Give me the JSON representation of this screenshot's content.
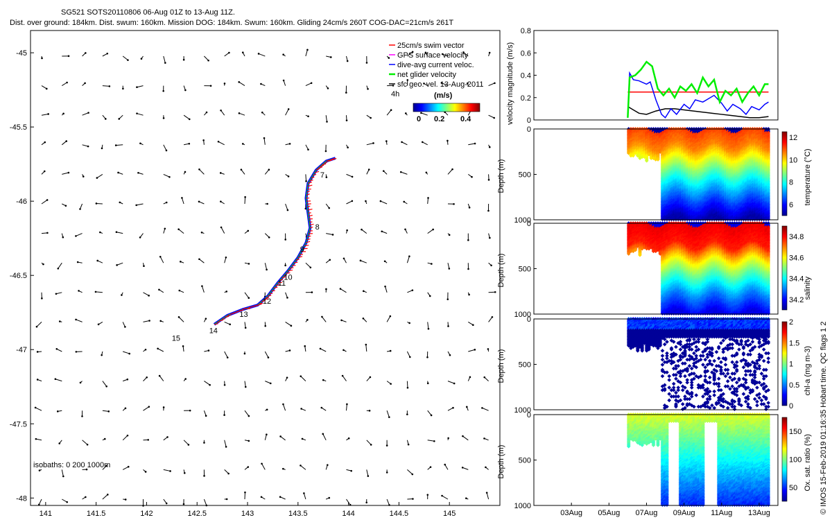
{
  "header": {
    "title_line1": "SG521 SOTS20110806 06-Aug 01Z to 13-Aug 11Z.",
    "title_line2": "Dist. over ground: 184km. Dist. swum: 160km. Mission DOG: 184km. Swum: 160km. Gliding 24cm/s 260T COG-DAC=21cm/s 261T"
  },
  "watermark": "© IMOS 15-Feb-2019 01:16:35 Hobart time. QC flags 1 2",
  "colors": {
    "swim": "#ff0000",
    "gps": "#ff00ff",
    "dac": "#0000ff",
    "net": "#00ee00",
    "geo": "#000000"
  },
  "chart_data": [
    {
      "type": "line",
      "panel": "map",
      "title": "",
      "xlim": [
        140.85,
        145.5
      ],
      "ylim": [
        -48.05,
        -44.85
      ],
      "x_ticks": [
        "141",
        "141.5",
        "142",
        "142.5",
        "143",
        "143.5",
        "144",
        "144.5",
        "145"
      ],
      "y_ticks": [
        "-45",
        "-45.5",
        "-46",
        "-46.5",
        "-47",
        "-47.5",
        "-48"
      ],
      "legend": [
        {
          "label": "25cm/s swim vector",
          "color": "#ff0000"
        },
        {
          "label": "GPS surface velocity",
          "color": "#ff00ff"
        },
        {
          "label": "dive-avg current veloc.",
          "color": "#0000ff"
        },
        {
          "label": "net glider velocity",
          "color": "#00ee00"
        },
        {
          "label": "sfc geo. vel. 13-Aug-2011",
          "color": "#000000"
        }
      ],
      "legend_time": "4h",
      "colorbar_title": "(m/s)",
      "colorbar_ticks": [
        "0",
        "0.2",
        "0.4"
      ],
      "isobaths_label": "isobaths: 0   200   1000m",
      "track": [
        [
          142.67,
          -46.83
        ],
        [
          142.8,
          -46.77
        ],
        [
          142.95,
          -46.73
        ],
        [
          143.1,
          -46.7
        ],
        [
          143.2,
          -46.64
        ],
        [
          143.3,
          -46.55
        ],
        [
          143.4,
          -46.47
        ],
        [
          143.5,
          -46.38
        ],
        [
          143.58,
          -46.28
        ],
        [
          143.62,
          -46.18
        ],
        [
          143.6,
          -46.08
        ],
        [
          143.58,
          -45.98
        ],
        [
          143.6,
          -45.88
        ],
        [
          143.68,
          -45.79
        ],
        [
          143.78,
          -45.73
        ],
        [
          143.87,
          -45.71
        ]
      ],
      "day_labels": [
        {
          "text": "7",
          "x": 143.72,
          "y": -45.84
        },
        {
          "text": "8",
          "x": 143.67,
          "y": -46.19
        },
        {
          "text": "9",
          "x": 143.52,
          "y": -46.34
        },
        {
          "text": "10",
          "x": 143.36,
          "y": -46.53
        },
        {
          "text": "11",
          "x": 143.3,
          "y": -46.57
        },
        {
          "text": "12",
          "x": 143.15,
          "y": -46.69
        },
        {
          "text": "13",
          "x": 142.92,
          "y": -46.78
        },
        {
          "text": "14",
          "x": 142.62,
          "y": -46.89
        },
        {
          "text": "15",
          "x": 142.25,
          "y": -46.94
        }
      ]
    },
    {
      "type": "line",
      "panel": "velocity",
      "ylabel": "velocity magnitude (m/s)",
      "ylim": [
        0,
        0.8
      ],
      "y_ticks": [
        "0",
        "0.2",
        "0.4",
        "0.6",
        "0.8"
      ],
      "series": [
        {
          "color": "#ff0000",
          "x": [
            6.0,
            13.5
          ],
          "y": [
            0.25,
            0.25
          ]
        },
        {
          "color": "#000000",
          "x": [
            6.0,
            6.3,
            6.6,
            7.0,
            7.5,
            8.0,
            8.5,
            9.0,
            9.5,
            10.0,
            10.5,
            11.0,
            11.5,
            12.0,
            12.5,
            13.0,
            13.5
          ],
          "y": [
            0.12,
            0.09,
            0.06,
            0.05,
            0.08,
            0.1,
            0.1,
            0.09,
            0.08,
            0.07,
            0.06,
            0.05,
            0.04,
            0.03,
            0.02,
            0.02,
            0.03
          ]
        },
        {
          "color": "#0000ff",
          "x": [
            6.0,
            6.1,
            6.3,
            6.6,
            7.0,
            7.2,
            7.5,
            7.8,
            8.0,
            8.3,
            8.6,
            9.0,
            9.3,
            9.6,
            10.0,
            10.3,
            10.6,
            11.0,
            11.3,
            11.6,
            12.0,
            12.3,
            12.6,
            13.0,
            13.3,
            13.5
          ],
          "y": [
            0.02,
            0.42,
            0.36,
            0.35,
            0.32,
            0.34,
            0.18,
            0.05,
            0.02,
            0.1,
            0.05,
            0.14,
            0.1,
            0.18,
            0.16,
            0.19,
            0.22,
            0.15,
            0.08,
            0.14,
            0.1,
            0.05,
            0.12,
            0.09,
            0.14,
            0.16
          ]
        },
        {
          "color": "#00ee00",
          "x": [
            6.0,
            6.1,
            6.4,
            6.7,
            7.0,
            7.3,
            7.6,
            7.9,
            8.2,
            8.5,
            8.8,
            9.1,
            9.4,
            9.7,
            10.0,
            10.3,
            10.6,
            10.9,
            11.2,
            11.5,
            11.8,
            12.1,
            12.4,
            12.7,
            13.0,
            13.3,
            13.5
          ],
          "y": [
            0.02,
            0.38,
            0.4,
            0.45,
            0.52,
            0.48,
            0.28,
            0.22,
            0.28,
            0.2,
            0.3,
            0.26,
            0.32,
            0.24,
            0.38,
            0.3,
            0.36,
            0.16,
            0.26,
            0.22,
            0.28,
            0.16,
            0.24,
            0.3,
            0.22,
            0.32,
            0.32
          ]
        }
      ]
    },
    {
      "type": "heatmap",
      "panel": "temperature",
      "ylabel": "Depth (m)",
      "colorbar_label": "temperature (°C)",
      "colorbar_ticks": [
        "6",
        "8",
        "10",
        "12"
      ],
      "ylim": [
        1000,
        0
      ],
      "y_ticks": [
        "0",
        "500",
        "1000"
      ],
      "range": [
        5,
        12.5
      ],
      "shallow_phase_end_day": 7.78,
      "profile_values": [
        [
          0,
          11.2
        ],
        [
          200,
          10.6
        ],
        [
          350,
          9.5
        ],
        [
          550,
          8.0
        ],
        [
          800,
          6.4
        ],
        [
          1000,
          5.3
        ]
      ]
    },
    {
      "type": "heatmap",
      "panel": "salinity",
      "ylabel": "Depth (m)",
      "colorbar_label": "salinity",
      "colorbar_ticks": [
        "34.2",
        "34.4",
        "34.6",
        "34.8"
      ],
      "ylim": [
        1000,
        0
      ],
      "y_ticks": [
        "0",
        "500",
        "1000"
      ],
      "range": [
        34.1,
        34.9
      ],
      "shallow_phase_end_day": 7.78,
      "profile_values": [
        [
          0,
          34.82
        ],
        [
          250,
          34.78
        ],
        [
          420,
          34.6
        ],
        [
          600,
          34.45
        ],
        [
          800,
          34.3
        ],
        [
          1000,
          34.18
        ]
      ]
    },
    {
      "type": "scatter",
      "panel": "chlorophyll",
      "ylabel": "Depth (m)",
      "colorbar_label": "chl-a (mg m-3)",
      "colorbar_ticks": [
        "0",
        "0.5",
        "1",
        "1.5",
        "2"
      ],
      "ylim": [
        1000,
        0
      ],
      "y_ticks": [
        "0",
        "500",
        "1000"
      ],
      "range": [
        0,
        2
      ]
    },
    {
      "type": "heatmap",
      "panel": "oxygen",
      "ylabel": "Depth (m)",
      "colorbar_label": "Ox. sat. ratio (%)",
      "colorbar_ticks": [
        "50",
        "100",
        "150"
      ],
      "ylim": [
        1000,
        0
      ],
      "y_ticks": [
        "0",
        "500",
        "1000"
      ],
      "range": [
        25,
        175
      ],
      "x_ticks": [
        "03Aug",
        "05Aug",
        "07Aug",
        "09Aug",
        "11Aug",
        "13Aug"
      ]
    }
  ]
}
